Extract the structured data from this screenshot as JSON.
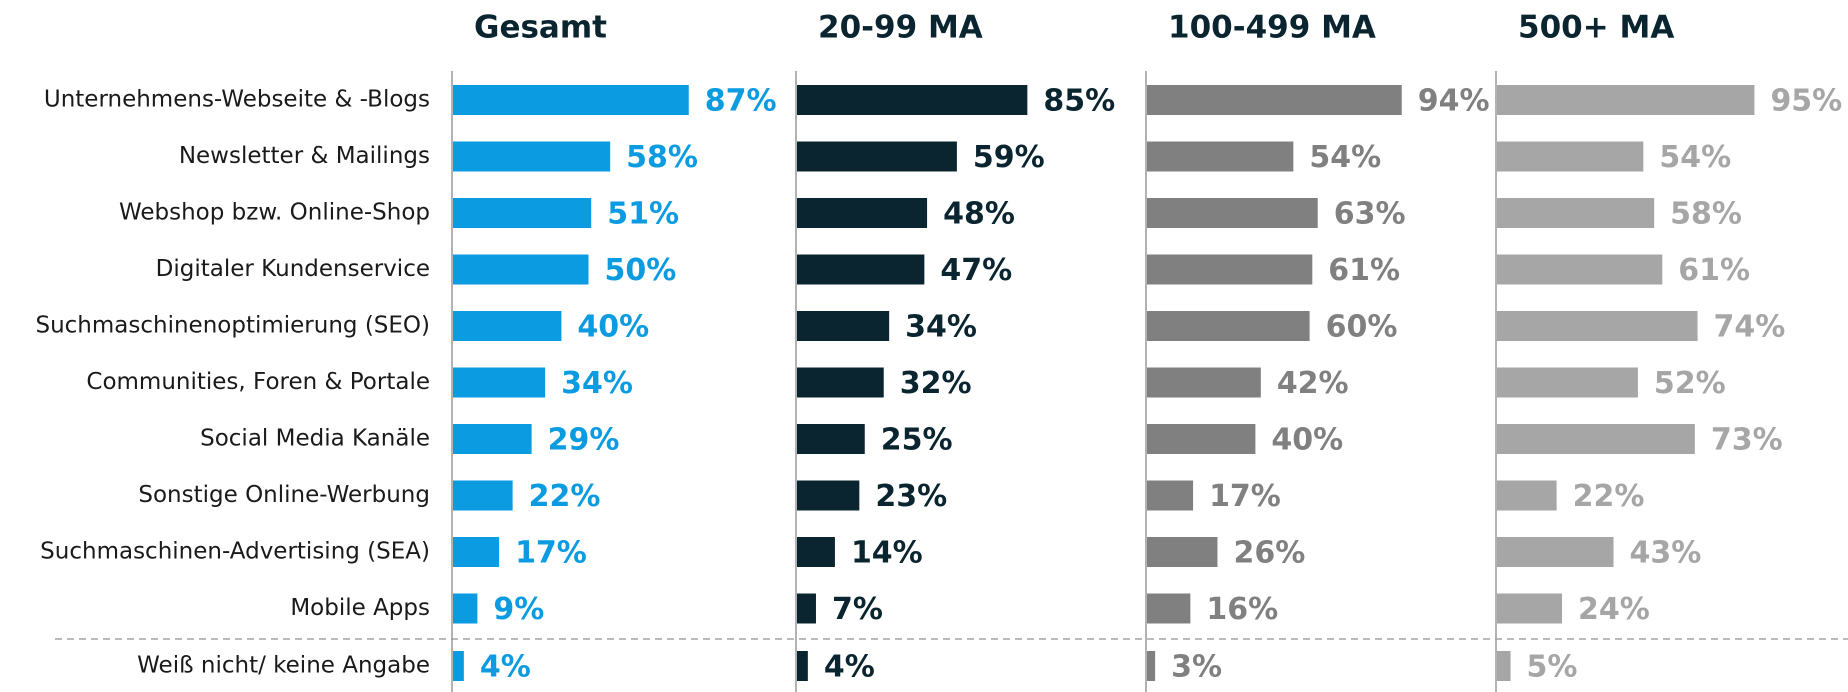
{
  "chart_data": {
    "type": "bar",
    "orientation": "horizontal",
    "categories": [
      "Unternehmens-Webseite & -Blogs",
      "Newsletter & Mailings",
      "Webshop bzw. Online-Shop",
      "Digitaler Kundenservice",
      "Suchmaschinenoptimierung (SEO)",
      "Communities, Foren & Portale",
      "Social Media Kanäle",
      "Sonstige Online-Werbung",
      "Suchmaschinen-Advertising (SEA)",
      "Mobile Apps",
      "Weiß nicht/ keine Angabe"
    ],
    "xlim": [
      0,
      100
    ],
    "series": [
      {
        "name": "Gesamt",
        "color": "#0a9be0",
        "values": [
          87,
          58,
          51,
          50,
          40,
          34,
          29,
          22,
          17,
          9,
          4
        ],
        "value_labels": [
          "87%",
          "58%",
          "51%",
          "50%",
          "40%",
          "34%",
          "29%",
          "22%",
          "17%",
          "9%",
          "4%"
        ]
      },
      {
        "name": "20-99 MA",
        "color": "#0b2530",
        "values": [
          85,
          59,
          48,
          47,
          34,
          32,
          25,
          23,
          14,
          7,
          4
        ],
        "value_labels": [
          "85%",
          "59%",
          "48%",
          "47%",
          "34%",
          "32%",
          "25%",
          "23%",
          "14%",
          "7%",
          "4%"
        ]
      },
      {
        "name": "100-499 MA",
        "color": "#808080",
        "values": [
          94,
          54,
          63,
          61,
          60,
          42,
          40,
          17,
          26,
          16,
          3
        ],
        "value_labels": [
          "94%",
          "54%",
          "63%",
          "61%",
          "60%",
          "42%",
          "40%",
          "17%",
          "26%",
          "16%",
          "3%"
        ]
      },
      {
        "name": "500+ MA",
        "color": "#a6a6a6",
        "values": [
          95,
          54,
          58,
          61,
          74,
          52,
          73,
          22,
          43,
          24,
          5
        ],
        "value_labels": [
          "95%",
          "54%",
          "58%",
          "61%",
          "74%",
          "52%",
          "73%",
          "22%",
          "43%",
          "24%",
          "5%"
        ]
      }
    ]
  }
}
